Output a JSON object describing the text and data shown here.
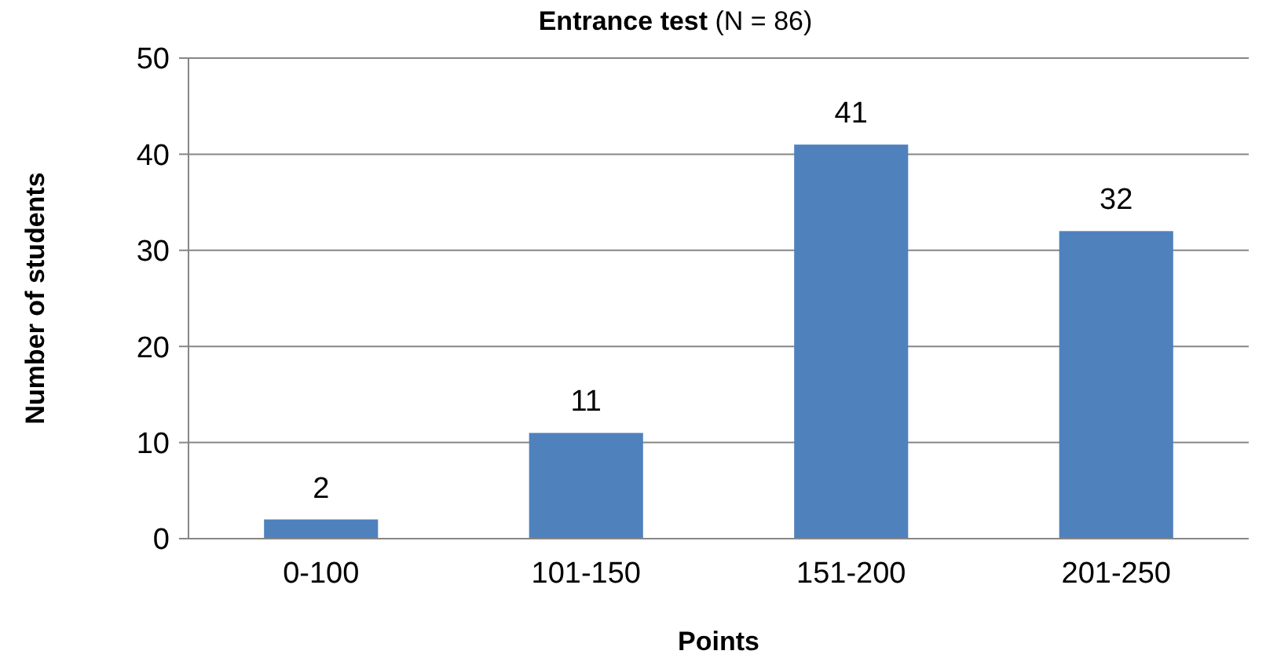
{
  "chart_data": {
    "type": "bar",
    "title": "Entrance test",
    "subtitle": "(N = 86)",
    "xlabel": "Points",
    "ylabel": "Number of students",
    "categories": [
      "0-100",
      "101-150",
      "151-200",
      "201-250"
    ],
    "values": [
      2,
      11,
      41,
      32
    ],
    "color": "#4f81bd",
    "ylim": [
      0,
      50
    ],
    "yticks": [
      0,
      10,
      20,
      30,
      40,
      50
    ],
    "grid": "y",
    "data_labels": true
  }
}
